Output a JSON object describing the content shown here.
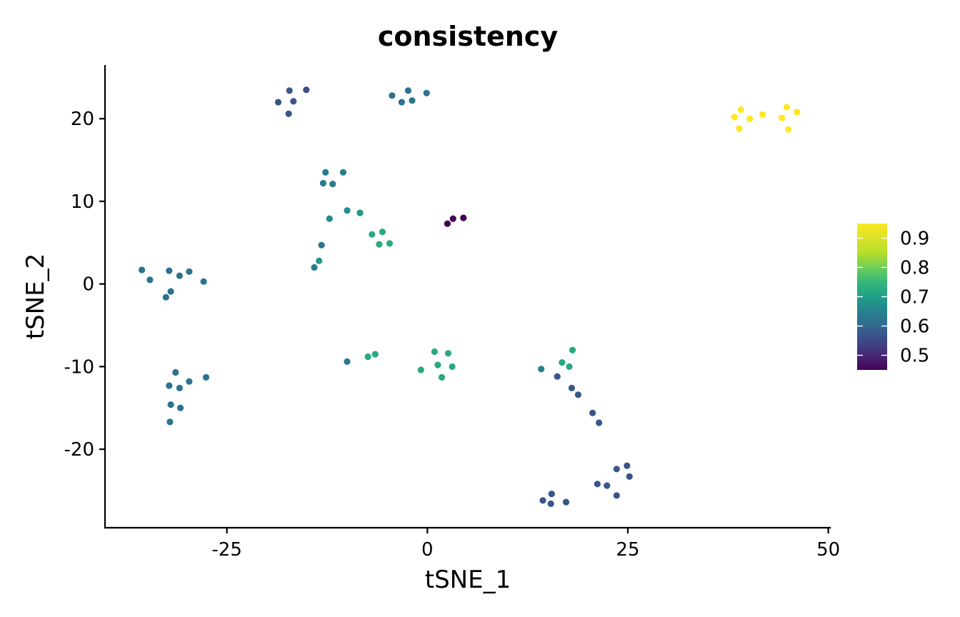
{
  "chart_data": {
    "type": "scatter",
    "title": "consistency",
    "xlabel": "tSNE_1",
    "ylabel": "tSNE_2",
    "xlim": [
      -40.2,
      50.3
    ],
    "ylim": [
      -29.5,
      26.5
    ],
    "xticks": [
      -25,
      0,
      25,
      50
    ],
    "xtick_labels": [
      "-25",
      "0",
      "25",
      "50"
    ],
    "yticks": [
      -20,
      -10,
      0,
      10,
      20
    ],
    "ytick_labels": [
      "-20",
      "-10",
      "0",
      "10",
      "20"
    ],
    "grid": false,
    "legend_position": "right",
    "colorbar": {
      "colormap": "viridis",
      "min": 0.45,
      "max": 0.95,
      "ticks": [
        0.5,
        0.6,
        0.7,
        0.8,
        0.9
      ],
      "tick_labels": [
        "0.5",
        "0.6",
        "0.7",
        "0.8",
        "0.9"
      ]
    },
    "points": [
      {
        "x": -18.6,
        "y": 22.0,
        "v": 0.57
      },
      {
        "x": -17.2,
        "y": 23.4,
        "v": 0.57
      },
      {
        "x": -16.7,
        "y": 22.1,
        "v": 0.57
      },
      {
        "x": -15.1,
        "y": 23.5,
        "v": 0.56
      },
      {
        "x": -17.3,
        "y": 20.6,
        "v": 0.57
      },
      {
        "x": -4.4,
        "y": 22.8,
        "v": 0.62
      },
      {
        "x": -3.2,
        "y": 22.0,
        "v": 0.62
      },
      {
        "x": -2.4,
        "y": 23.4,
        "v": 0.62
      },
      {
        "x": -1.9,
        "y": 22.2,
        "v": 0.62
      },
      {
        "x": -0.1,
        "y": 23.1,
        "v": 0.62
      },
      {
        "x": 38.3,
        "y": 20.2,
        "v": 0.95
      },
      {
        "x": 39.1,
        "y": 21.1,
        "v": 0.95
      },
      {
        "x": 38.9,
        "y": 18.8,
        "v": 0.95
      },
      {
        "x": 40.2,
        "y": 20.0,
        "v": 0.95
      },
      {
        "x": 41.8,
        "y": 20.5,
        "v": 0.95
      },
      {
        "x": 44.2,
        "y": 20.1,
        "v": 0.95
      },
      {
        "x": 44.8,
        "y": 21.4,
        "v": 0.95
      },
      {
        "x": 45.0,
        "y": 18.7,
        "v": 0.95
      },
      {
        "x": 46.1,
        "y": 20.8,
        "v": 0.95
      },
      {
        "x": -12.7,
        "y": 13.5,
        "v": 0.64
      },
      {
        "x": -13.0,
        "y": 12.2,
        "v": 0.64
      },
      {
        "x": -11.8,
        "y": 12.1,
        "v": 0.64
      },
      {
        "x": -10.5,
        "y": 13.5,
        "v": 0.64
      },
      {
        "x": -12.2,
        "y": 7.9,
        "v": 0.67
      },
      {
        "x": -10.0,
        "y": 8.9,
        "v": 0.67
      },
      {
        "x": -8.4,
        "y": 8.6,
        "v": 0.69
      },
      {
        "x": -13.2,
        "y": 4.7,
        "v": 0.63
      },
      {
        "x": -13.5,
        "y": 2.8,
        "v": 0.69
      },
      {
        "x": -14.1,
        "y": 2.0,
        "v": 0.64
      },
      {
        "x": -6.9,
        "y": 6.0,
        "v": 0.72
      },
      {
        "x": -5.6,
        "y": 6.3,
        "v": 0.72
      },
      {
        "x": -6.0,
        "y": 4.8,
        "v": 0.72
      },
      {
        "x": -4.7,
        "y": 4.9,
        "v": 0.72
      },
      {
        "x": 2.5,
        "y": 7.3,
        "v": 0.45
      },
      {
        "x": 3.2,
        "y": 7.9,
        "v": 0.45
      },
      {
        "x": 4.5,
        "y": 8.0,
        "v": 0.45
      },
      {
        "x": -35.6,
        "y": 1.7,
        "v": 0.62
      },
      {
        "x": -34.6,
        "y": 0.5,
        "v": 0.62
      },
      {
        "x": -32.2,
        "y": 1.6,
        "v": 0.62
      },
      {
        "x": -30.9,
        "y": 1.0,
        "v": 0.62
      },
      {
        "x": -29.7,
        "y": 1.5,
        "v": 0.62
      },
      {
        "x": -27.9,
        "y": 0.3,
        "v": 0.62
      },
      {
        "x": -32.6,
        "y": -1.6,
        "v": 0.62
      },
      {
        "x": -32.0,
        "y": -0.9,
        "v": 0.62
      },
      {
        "x": -31.4,
        "y": -10.7,
        "v": 0.62
      },
      {
        "x": -32.2,
        "y": -12.3,
        "v": 0.62
      },
      {
        "x": -30.9,
        "y": -12.6,
        "v": 0.62
      },
      {
        "x": -29.7,
        "y": -11.8,
        "v": 0.62
      },
      {
        "x": -27.6,
        "y": -11.3,
        "v": 0.62
      },
      {
        "x": -32.0,
        "y": -14.6,
        "v": 0.62
      },
      {
        "x": -30.8,
        "y": -15.0,
        "v": 0.62
      },
      {
        "x": -32.1,
        "y": -16.7,
        "v": 0.62
      },
      {
        "x": -10.0,
        "y": -9.4,
        "v": 0.63
      },
      {
        "x": -7.4,
        "y": -8.8,
        "v": 0.72
      },
      {
        "x": -6.5,
        "y": -8.5,
        "v": 0.72
      },
      {
        "x": -0.8,
        "y": -10.4,
        "v": 0.72
      },
      {
        "x": 0.9,
        "y": -8.2,
        "v": 0.72
      },
      {
        "x": 1.3,
        "y": -9.8,
        "v": 0.72
      },
      {
        "x": 2.6,
        "y": -8.4,
        "v": 0.72
      },
      {
        "x": 1.8,
        "y": -11.3,
        "v": 0.72
      },
      {
        "x": 3.1,
        "y": -10.0,
        "v": 0.72
      },
      {
        "x": 14.2,
        "y": -10.3,
        "v": 0.64
      },
      {
        "x": 16.8,
        "y": -9.5,
        "v": 0.72
      },
      {
        "x": 18.1,
        "y": -8.0,
        "v": 0.72
      },
      {
        "x": 17.7,
        "y": -10.0,
        "v": 0.72
      },
      {
        "x": 16.2,
        "y": -11.2,
        "v": 0.57
      },
      {
        "x": 18.0,
        "y": -12.6,
        "v": 0.57
      },
      {
        "x": 18.8,
        "y": -13.4,
        "v": 0.57
      },
      {
        "x": 20.6,
        "y": -15.6,
        "v": 0.57
      },
      {
        "x": 21.4,
        "y": -16.8,
        "v": 0.57
      },
      {
        "x": 24.9,
        "y": -22.0,
        "v": 0.57
      },
      {
        "x": 23.6,
        "y": -22.4,
        "v": 0.57
      },
      {
        "x": 25.2,
        "y": -23.3,
        "v": 0.57
      },
      {
        "x": 21.2,
        "y": -24.2,
        "v": 0.57
      },
      {
        "x": 22.4,
        "y": -24.4,
        "v": 0.57
      },
      {
        "x": 23.6,
        "y": -25.6,
        "v": 0.57
      },
      {
        "x": 15.5,
        "y": -25.4,
        "v": 0.57
      },
      {
        "x": 14.4,
        "y": -26.2,
        "v": 0.57
      },
      {
        "x": 15.4,
        "y": -26.6,
        "v": 0.57
      },
      {
        "x": 17.3,
        "y": -26.4,
        "v": 0.57
      }
    ]
  }
}
